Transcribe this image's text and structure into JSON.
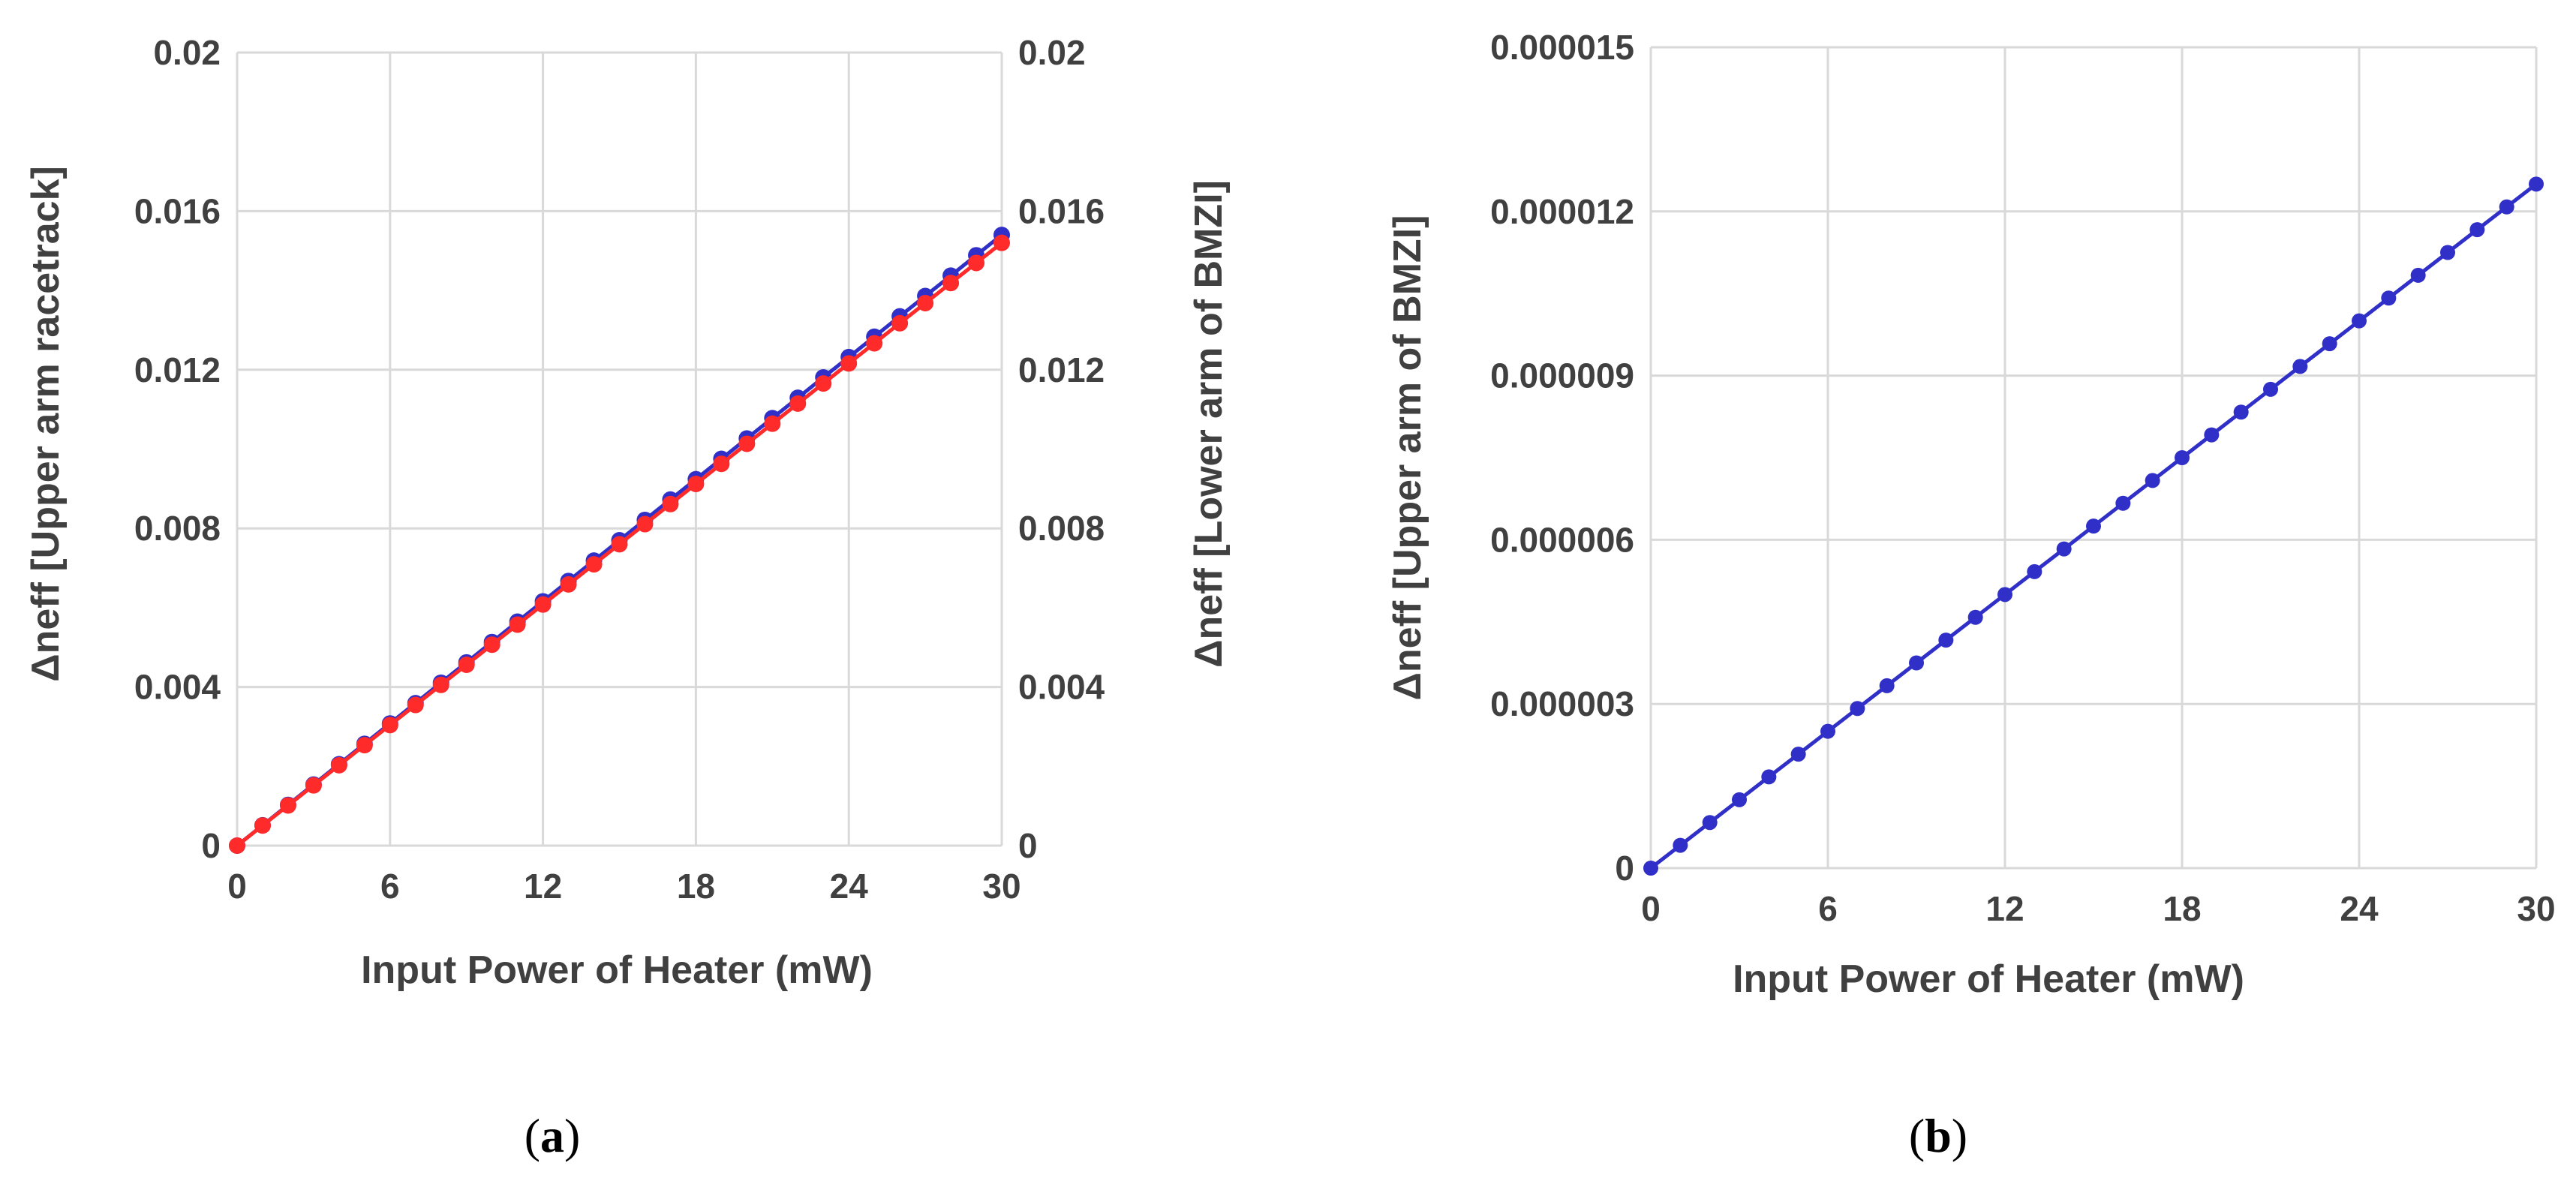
{
  "colors": {
    "series_blue": "#3030c8",
    "series_red": "#ff2a2a",
    "text": "#404040",
    "grid": "#d9d9d9"
  },
  "panels": [
    {
      "caption_open": "(",
      "caption_letter": "a",
      "caption_close": ")"
    },
    {
      "caption_open": "(",
      "caption_letter": "b",
      "caption_close": ")"
    }
  ],
  "chart_data": [
    {
      "type": "line",
      "xlabel": "Input Power of Heater (mW)",
      "ylabel_left": "Δneff [Upper arm racetrack]",
      "ylabel_right": "Δneff [Lower arm of BMZI]",
      "xlim": [
        0,
        30
      ],
      "ylim": [
        0,
        0.02
      ],
      "xticks": [
        "0",
        "6",
        "12",
        "18",
        "24",
        "30"
      ],
      "yticks_left": [
        "0",
        "0.004",
        "0.008",
        "0.012",
        "0.016",
        "0.02"
      ],
      "yticks_right": [
        "0",
        "0.004",
        "0.008",
        "0.012",
        "0.016",
        "0.02"
      ],
      "grid": true,
      "x": [
        0,
        1,
        2,
        3,
        4,
        5,
        6,
        7,
        8,
        9,
        10,
        11,
        12,
        13,
        14,
        15,
        16,
        17,
        18,
        19,
        20,
        21,
        22,
        23,
        24,
        25,
        26,
        27,
        28,
        29,
        30
      ],
      "series": [
        {
          "name": "Upper arm racetrack",
          "axis": "left",
          "color": "#3030c8",
          "values": [
            0,
            0.000513,
            0.001027,
            0.00154,
            0.002053,
            0.002567,
            0.00308,
            0.003593,
            0.004107,
            0.00462,
            0.005133,
            0.005647,
            0.00616,
            0.006673,
            0.007187,
            0.0077,
            0.008213,
            0.008727,
            0.00924,
            0.009753,
            0.010267,
            0.01078,
            0.011293,
            0.011807,
            0.01232,
            0.012833,
            0.013347,
            0.01386,
            0.014373,
            0.014887,
            0.0154
          ]
        },
        {
          "name": "Lower arm of BMZI",
          "axis": "right",
          "color": "#ff2a2a",
          "values": [
            0,
            0.000507,
            0.001013,
            0.00152,
            0.002027,
            0.002533,
            0.00304,
            0.003547,
            0.004053,
            0.00456,
            0.005067,
            0.005573,
            0.00608,
            0.006587,
            0.007093,
            0.0076,
            0.008107,
            0.008613,
            0.00912,
            0.009627,
            0.010133,
            0.01064,
            0.011147,
            0.011653,
            0.01216,
            0.012667,
            0.013173,
            0.01368,
            0.014187,
            0.014693,
            0.0152
          ]
        }
      ]
    },
    {
      "type": "line",
      "xlabel": "Input Power of  Heater  (mW)",
      "ylabel": "Δneff [Upper arm of BMZI]",
      "xlim": [
        0,
        30
      ],
      "ylim": [
        0,
        1.5e-05
      ],
      "xticks": [
        "0",
        "6",
        "12",
        "18",
        "24",
        "30"
      ],
      "yticks": [
        "0",
        "0.000003",
        "0.000006",
        "0.000009",
        "0.000012",
        "0.000015"
      ],
      "grid": true,
      "x": [
        0,
        1,
        2,
        3,
        4,
        5,
        6,
        7,
        8,
        9,
        10,
        11,
        12,
        13,
        14,
        15,
        16,
        17,
        18,
        19,
        20,
        21,
        22,
        23,
        24,
        25,
        26,
        27,
        28,
        29,
        30
      ],
      "series": [
        {
          "name": "Upper arm of BMZI",
          "color": "#3030c8",
          "values": [
            0,
            4.17e-07,
            8.33e-07,
            1.25e-06,
            1.667e-06,
            2.083e-06,
            2.5e-06,
            2.917e-06,
            3.333e-06,
            3.75e-06,
            4.167e-06,
            4.583e-06,
            5e-06,
            5.417e-06,
            5.833e-06,
            6.25e-06,
            6.667e-06,
            7.083e-06,
            7.5e-06,
            7.917e-06,
            8.333e-06,
            8.75e-06,
            9.167e-06,
            9.583e-06,
            1e-05,
            1.0417e-05,
            1.0833e-05,
            1.125e-05,
            1.1667e-05,
            1.2083e-05,
            1.25e-05
          ]
        }
      ]
    }
  ]
}
